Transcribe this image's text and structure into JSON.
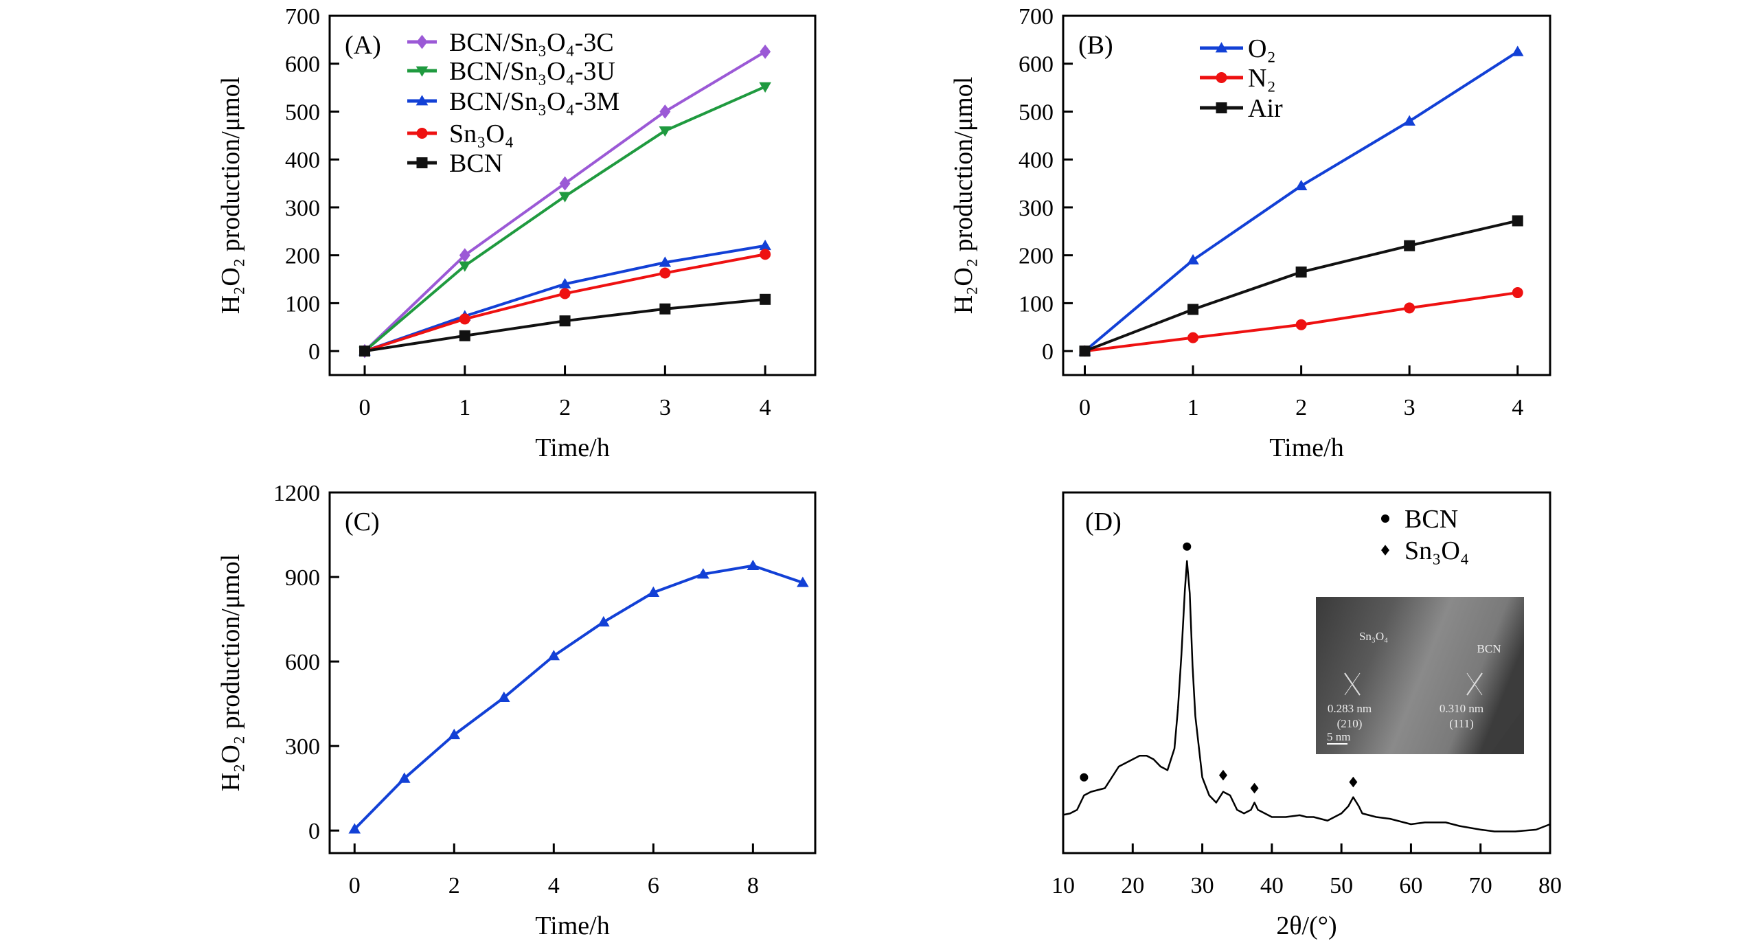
{
  "chart_data": [
    {
      "panel": "(A)",
      "type": "line",
      "xlabel": "Time/h",
      "ylabel": "H₂O₂ production/μmol",
      "xlim": [
        -0.35,
        4.5
      ],
      "ylim": [
        -50,
        700
      ],
      "xticks": [
        0,
        1,
        2,
        3,
        4
      ],
      "yticks": [
        0,
        100,
        200,
        300,
        400,
        500,
        600,
        700
      ],
      "grid": false,
      "legend_placement": "top-left",
      "x": [
        0,
        1,
        2,
        3,
        4
      ],
      "series": [
        {
          "name": "BCN/Sn₃O₄-3C",
          "color": "#9b59d6",
          "marker": "diamond",
          "values": [
            0,
            200,
            350,
            500,
            625
          ]
        },
        {
          "name": "BCN/Sn₃O₄-3U",
          "color": "#1f9a3f",
          "marker": "triangle-down",
          "values": [
            0,
            178,
            323,
            460,
            552
          ]
        },
        {
          "name": "BCN/Sn₃O₄-3M",
          "color": "#1240d6",
          "marker": "triangle-up",
          "values": [
            0,
            73,
            140,
            185,
            220
          ]
        },
        {
          "name": "Sn₃O₄",
          "color": "#ee1111",
          "marker": "circle",
          "values": [
            0,
            67,
            120,
            163,
            202
          ]
        },
        {
          "name": "BCN",
          "color": "#111111",
          "marker": "square",
          "values": [
            0,
            32,
            63,
            88,
            108
          ]
        }
      ]
    },
    {
      "panel": "(B)",
      "type": "line",
      "xlabel": "Time/h",
      "ylabel": "H₂O₂ production/μmol",
      "xlim": [
        -0.2,
        4.3
      ],
      "ylim": [
        -50,
        700
      ],
      "xticks": [
        0,
        1,
        2,
        3,
        4
      ],
      "yticks": [
        0,
        100,
        200,
        300,
        400,
        500,
        600,
        700
      ],
      "grid": false,
      "legend_placement": "top-left",
      "x": [
        0,
        1,
        2,
        3,
        4
      ],
      "series": [
        {
          "name": "O₂",
          "color": "#1240d6",
          "marker": "triangle-up",
          "values": [
            0,
            190,
            345,
            480,
            625
          ]
        },
        {
          "name": "N₂",
          "color": "#ee1111",
          "marker": "circle",
          "values": [
            0,
            28,
            55,
            90,
            122
          ]
        },
        {
          "name": "Air",
          "color": "#111111",
          "marker": "square",
          "values": [
            0,
            87,
            165,
            220,
            272
          ]
        }
      ]
    },
    {
      "panel": "(C)",
      "type": "line",
      "xlabel": "Time/h",
      "ylabel": "H₂O₂ production/μmol",
      "xlim": [
        -0.5,
        9.25
      ],
      "ylim": [
        -80,
        1200
      ],
      "xticks": [
        0,
        2,
        4,
        6,
        8
      ],
      "yticks": [
        0,
        300,
        600,
        900,
        1200
      ],
      "grid": false,
      "x": [
        0,
        1,
        2,
        3,
        4,
        5,
        6,
        7,
        8,
        9
      ],
      "series": [
        {
          "color": "#1240d6",
          "marker": "triangle-up",
          "values": [
            5,
            185,
            340,
            472,
            620,
            740,
            845,
            910,
            940,
            880
          ]
        }
      ]
    },
    {
      "panel": "(D)",
      "type": "line",
      "xlabel": "2θ/(°)",
      "ylabel": "",
      "xlim": [
        10,
        80
      ],
      "ylim": [
        0,
        100
      ],
      "xticks": [
        10,
        20,
        30,
        40,
        50,
        60,
        70,
        80
      ],
      "grid": false,
      "legend_placement": "top-right",
      "x": [
        10,
        11,
        12,
        13,
        14,
        15,
        16,
        17,
        18,
        19,
        20,
        21,
        22,
        23,
        24,
        25,
        26,
        26.5,
        27,
        27.5,
        27.8,
        28.2,
        28.6,
        29,
        30,
        31,
        32,
        33,
        34,
        35,
        36,
        37,
        37.5,
        38,
        39,
        40,
        42,
        44,
        45,
        46,
        48,
        50,
        51,
        51.7,
        52.5,
        53,
        55,
        57,
        60,
        62,
        65,
        67,
        70,
        72,
        75,
        78,
        80
      ],
      "series": [
        {
          "color": "#000000",
          "values": [
            10.6,
            11,
            12,
            16,
            17,
            17.5,
            18,
            21,
            24,
            25,
            26,
            27,
            27,
            26,
            24,
            23,
            29,
            40,
            55,
            73,
            81,
            72,
            52,
            38,
            21,
            16,
            14,
            17,
            16,
            12,
            11,
            12,
            14,
            12,
            11,
            10,
            10,
            10.5,
            10,
            10,
            9,
            11,
            13,
            15.5,
            13,
            11,
            10,
            9.5,
            8,
            8.5,
            8.5,
            7.5,
            6.5,
            6,
            6,
            6.5,
            8
          ]
        }
      ],
      "phase_markers": [
        {
          "name": "BCN",
          "marker": "circle",
          "positions": [
            [
              13,
              21
            ],
            [
              27.8,
              85
            ]
          ]
        },
        {
          "name": "Sn₃O₄",
          "marker": "diamond",
          "positions": [
            [
              33,
              21.6
            ],
            [
              37.5,
              18
            ],
            [
              51.7,
              19.7
            ]
          ]
        }
      ],
      "inset": {
        "type": "TEM image",
        "labels": [
          "Sn₃O₄",
          "BCN",
          "0.283 nm",
          "(210)",
          "0.310 nm",
          "(111)",
          "5 nm"
        ]
      }
    }
  ]
}
